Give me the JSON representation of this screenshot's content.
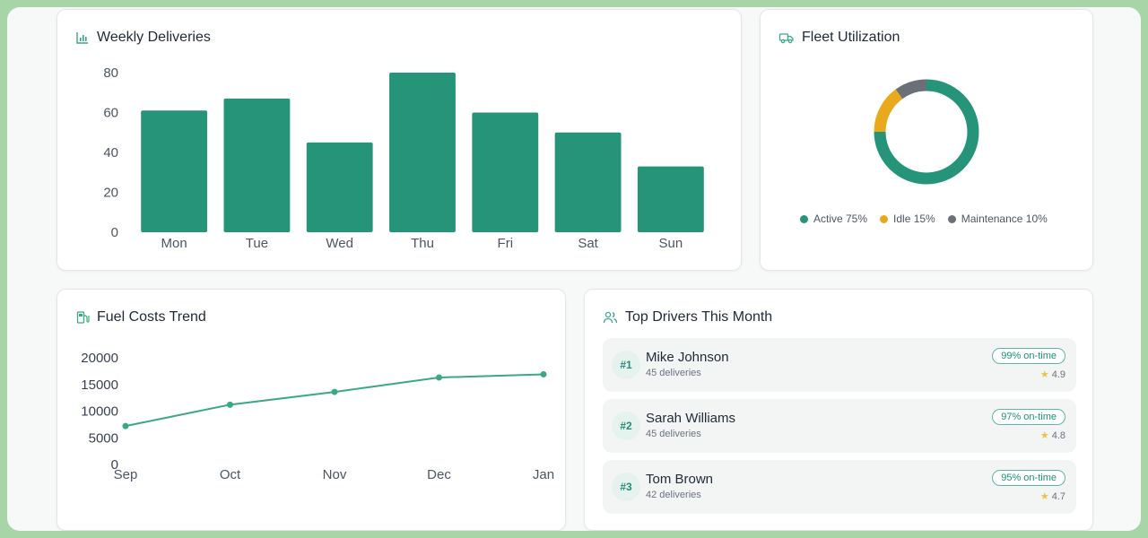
{
  "colors": {
    "primary": "#259478",
    "idle": "#e8a91c",
    "maintenance": "#6b7078",
    "line": "#3aa982"
  },
  "weekly": {
    "title": "Weekly Deliveries",
    "icon": "bar-chart-icon"
  },
  "fleet": {
    "title": "Fleet Utilization",
    "icon": "truck-icon",
    "legend": [
      {
        "label": "Active 75%",
        "color": "#259478"
      },
      {
        "label": "Idle 15%",
        "color": "#e8a91c"
      },
      {
        "label": "Maintenance 10%",
        "color": "#6b7078"
      }
    ]
  },
  "fuel": {
    "title": "Fuel Costs Trend",
    "icon": "fuel-pump-icon"
  },
  "drivers": {
    "title": "Top Drivers This Month",
    "icon": "users-icon",
    "items": [
      {
        "rank": "#1",
        "name": "Mike Johnson",
        "deliveries": "45 deliveries",
        "ontime": "99% on-time",
        "rating": "4.9"
      },
      {
        "rank": "#2",
        "name": "Sarah Williams",
        "deliveries": "45 deliveries",
        "ontime": "97% on-time",
        "rating": "4.8"
      },
      {
        "rank": "#3",
        "name": "Tom Brown",
        "deliveries": "42 deliveries",
        "ontime": "95% on-time",
        "rating": "4.7"
      }
    ]
  },
  "chart_data": [
    {
      "type": "bar",
      "title": "Weekly Deliveries",
      "categories": [
        "Mon",
        "Tue",
        "Wed",
        "Thu",
        "Fri",
        "Sat",
        "Sun"
      ],
      "values": [
        61,
        67,
        45,
        80,
        60,
        50,
        33
      ],
      "yticks": [
        0,
        20,
        40,
        60,
        80
      ],
      "ylim": [
        0,
        80
      ],
      "grid": false
    },
    {
      "type": "pie",
      "title": "Fleet Utilization",
      "categories": [
        "Active",
        "Idle",
        "Maintenance"
      ],
      "values": [
        75,
        15,
        10
      ]
    },
    {
      "type": "line",
      "title": "Fuel Costs Trend",
      "categories": [
        "Sep",
        "Oct",
        "Nov",
        "Dec",
        "Jan"
      ],
      "values": [
        7200,
        11200,
        13600,
        16300,
        16900
      ],
      "yticks": [
        0,
        5000,
        10000,
        15000,
        20000
      ],
      "ylim": [
        0,
        20000
      ],
      "grid": false
    }
  ]
}
